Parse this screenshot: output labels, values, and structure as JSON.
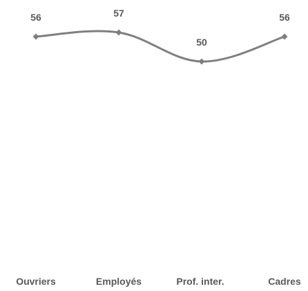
{
  "chart_data": {
    "type": "line",
    "categories": [
      "Ouvriers",
      "Employés",
      "Prof. inter.",
      "Cadres"
    ],
    "series": [
      {
        "values": [
          56,
          57,
          50,
          56
        ],
        "color": "#7f7f7f",
        "data_labels": [
          "56",
          "57",
          "50",
          "56"
        ]
      }
    ],
    "ylim": [
      0,
      60
    ],
    "smooth": true,
    "grid": false,
    "legend": "none"
  }
}
